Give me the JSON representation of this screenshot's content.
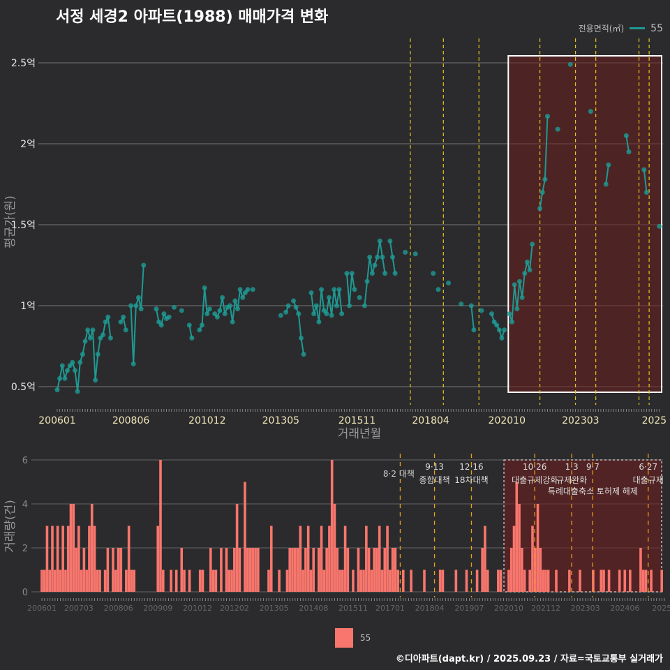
{
  "title": "서정 세경2 아파트(1988) 매매가격 변화",
  "legend": {
    "title": "전용면적(㎡)",
    "item": "55"
  },
  "footer": "©디아파트(dapt.kr) / 2025.09.23 / 자료=국토교통부 실거래가",
  "colors": {
    "line": "#1e9a93",
    "bar": "#f8766d",
    "policy": "#e6c619",
    "highlight": "#6b1e1e"
  },
  "chart_data": [
    {
      "type": "line",
      "title": "서정 세경2 아파트(1988) 매매가격 변화",
      "xlabel": "거래년월",
      "ylabel": "평균가(원)",
      "x_unit": "months since 200601",
      "xticks": [
        {
          "m": 0,
          "label": "200601"
        },
        {
          "m": 29,
          "label": "200806"
        },
        {
          "m": 59,
          "label": "201012"
        },
        {
          "m": 88,
          "label": "201305"
        },
        {
          "m": 118,
          "label": "201511"
        },
        {
          "m": 147,
          "label": "201804"
        },
        {
          "m": 177,
          "label": "202010"
        },
        {
          "m": 206,
          "label": "202303"
        },
        {
          "m": 235,
          "label": "2025"
        }
      ],
      "yticks": [
        {
          "v": 0.5,
          "label": "0.5억"
        },
        {
          "v": 1,
          "label": "1억"
        },
        {
          "v": 1.5,
          "label": "1.5억"
        },
        {
          "v": 2,
          "label": "2억"
        },
        {
          "v": 2.5,
          "label": "2.5억"
        }
      ],
      "ylim": [
        0.38,
        2.6
      ],
      "xlim": [
        -7,
        239
      ],
      "series": [
        {
          "name": "55",
          "points": [
            [
              0,
              0.48
            ],
            [
              1,
              0.55
            ],
            [
              2,
              0.63
            ],
            [
              3,
              0.55
            ],
            [
              4,
              0.6
            ],
            [
              5,
              0.63
            ],
            [
              6,
              0.65
            ],
            [
              7,
              0.6
            ],
            [
              8,
              0.47
            ],
            [
              9,
              0.65
            ],
            [
              10,
              0.7
            ],
            [
              11,
              0.78
            ],
            [
              12,
              0.85
            ],
            [
              13,
              0.8
            ],
            [
              14,
              0.85
            ],
            [
              15,
              0.54
            ],
            [
              16,
              0.7
            ],
            [
              17,
              0.8
            ],
            [
              18,
              0.82
            ],
            [
              19,
              0.9
            ],
            [
              20,
              0.93
            ],
            [
              21,
              0.8
            ],
            [
              25,
              0.9
            ],
            [
              26,
              0.93
            ],
            [
              27,
              0.85
            ],
            [
              29,
              1.0
            ],
            [
              30,
              0.64
            ],
            [
              31,
              1.0
            ],
            [
              32,
              1.05
            ],
            [
              33,
              0.98
            ],
            [
              34,
              1.25
            ],
            [
              39,
              0.98
            ],
            [
              40,
              0.9
            ],
            [
              41,
              0.88
            ],
            [
              42,
              0.95
            ],
            [
              43,
              0.92
            ],
            [
              44,
              0.93
            ],
            [
              46,
              0.99
            ],
            [
              49,
              0.97
            ],
            [
              52,
              0.88
            ],
            [
              53,
              0.8
            ],
            [
              56,
              0.85
            ],
            [
              57,
              0.88
            ],
            [
              58,
              1.11
            ],
            [
              59,
              0.95
            ],
            [
              60,
              0.98
            ],
            [
              62,
              0.95
            ],
            [
              63,
              0.93
            ],
            [
              64,
              0.97
            ],
            [
              65,
              1.05
            ],
            [
              66,
              0.95
            ],
            [
              67,
              0.99
            ],
            [
              68,
              1.0
            ],
            [
              69,
              0.9
            ],
            [
              70,
              1.03
            ],
            [
              71,
              0.98
            ],
            [
              72,
              1.1
            ],
            [
              73,
              1.05
            ],
            [
              74,
              1.08
            ],
            [
              75,
              1.1
            ],
            [
              77,
              1.1
            ],
            [
              88,
              0.94
            ],
            [
              90,
              0.96
            ],
            [
              91,
              1.0
            ],
            [
              93,
              1.03
            ],
            [
              94,
              0.99
            ],
            [
              95,
              0.95
            ],
            [
              96,
              0.8
            ],
            [
              97,
              0.7
            ],
            [
              100,
              1.08
            ],
            [
              101,
              0.95
            ],
            [
              102,
              1.0
            ],
            [
              103,
              0.9
            ],
            [
              104,
              1.1
            ],
            [
              105,
              0.97
            ],
            [
              106,
              0.95
            ],
            [
              107,
              1.05
            ],
            [
              108,
              0.94
            ],
            [
              109,
              1.1
            ],
            [
              110,
              1.0
            ],
            [
              111,
              1.1
            ],
            [
              112,
              0.95
            ],
            [
              114,
              1.2
            ],
            [
              115,
              1.0
            ],
            [
              116,
              1.2
            ],
            [
              117,
              1.1
            ],
            [
              119,
              1.05
            ],
            [
              121,
              1.0
            ],
            [
              122,
              1.15
            ],
            [
              123,
              1.3
            ],
            [
              124,
              1.2
            ],
            [
              125,
              1.25
            ],
            [
              126,
              1.3
            ],
            [
              127,
              1.4
            ],
            [
              128,
              1.3
            ],
            [
              129,
              1.2
            ],
            [
              131,
              1.4
            ],
            [
              132,
              1.3
            ],
            [
              133,
              1.2
            ],
            [
              137,
              1.33
            ],
            [
              141,
              1.32
            ],
            [
              148,
              1.2
            ],
            [
              150,
              1.1
            ],
            [
              154,
              1.14
            ],
            [
              159,
              1.01
            ],
            [
              163,
              1.0
            ],
            [
              164,
              0.85
            ],
            [
              167,
              0.97
            ],
            [
              171,
              0.95
            ],
            [
              172,
              0.9
            ],
            [
              173,
              0.88
            ],
            [
              174,
              0.85
            ],
            [
              175,
              0.8
            ],
            [
              176,
              0.85
            ],
            [
              178,
              0.95
            ],
            [
              179,
              0.9
            ],
            [
              180,
              1.13
            ],
            [
              181,
              0.98
            ],
            [
              182,
              1.15
            ],
            [
              183,
              1.05
            ],
            [
              184,
              1.2
            ],
            [
              185,
              1.27
            ],
            [
              186,
              1.22
            ],
            [
              187,
              1.38
            ],
            [
              190,
              1.6
            ],
            [
              191,
              1.7
            ],
            [
              192,
              1.78
            ],
            [
              193,
              2.17
            ],
            [
              197,
              2.09
            ],
            [
              202,
              2.49
            ],
            [
              210,
              2.2
            ],
            [
              216,
              1.75
            ],
            [
              217,
              1.87
            ],
            [
              224,
              2.05
            ],
            [
              225,
              1.95
            ],
            [
              231,
              1.84
            ],
            [
              232,
              1.7
            ],
            [
              237,
              1.49
            ]
          ]
        }
      ],
      "policy_months": [
        139,
        152,
        166,
        190,
        204,
        212,
        229,
        233
      ],
      "highlight_range": [
        177,
        238
      ]
    },
    {
      "type": "bar",
      "ylabel": "거래량(건)",
      "xticks": [
        {
          "m": 0,
          "label": "200601"
        },
        {
          "m": 14,
          "label": "200703"
        },
        {
          "m": 29,
          "label": "200806"
        },
        {
          "m": 44,
          "label": "200909"
        },
        {
          "m": 59,
          "label": "201012"
        },
        {
          "m": 73,
          "label": "201202"
        },
        {
          "m": 88,
          "label": "201305"
        },
        {
          "m": 103,
          "label": "201408"
        },
        {
          "m": 118,
          "label": "201511"
        },
        {
          "m": 132,
          "label": "201701"
        },
        {
          "m": 147,
          "label": "201804"
        },
        {
          "m": 162,
          "label": "201907"
        },
        {
          "m": 177,
          "label": "202010"
        },
        {
          "m": 191,
          "label": "202112"
        },
        {
          "m": 206,
          "label": "202303"
        },
        {
          "m": 221,
          "label": "202406"
        },
        {
          "m": 235,
          "label": "2025"
        }
      ],
      "yticks": [
        {
          "v": 0,
          "label": "0"
        },
        {
          "v": 2,
          "label": "2"
        },
        {
          "v": 4,
          "label": "4"
        },
        {
          "v": 6,
          "label": "6"
        }
      ],
      "ylim": [
        -0.3,
        6.3
      ],
      "values": [
        1,
        1,
        3,
        1,
        3,
        1,
        3,
        1,
        3,
        1,
        3,
        4,
        4,
        2,
        3,
        1,
        2,
        1,
        3,
        4,
        3,
        1,
        1,
        0,
        1,
        2,
        0,
        2,
        1,
        2,
        2,
        0,
        1,
        3,
        1,
        1,
        0,
        0,
        0,
        0,
        0,
        0,
        0,
        0,
        3,
        6,
        1,
        0,
        0,
        1,
        0,
        1,
        0,
        2,
        1,
        0,
        1,
        0,
        0,
        0,
        1,
        1,
        0,
        0,
        2,
        1,
        1,
        0,
        2,
        0,
        2,
        1,
        1,
        2,
        4,
        2,
        0,
        5,
        2,
        2,
        2,
        2,
        2,
        0,
        0,
        0,
        1,
        3,
        0,
        0,
        1,
        0,
        0,
        1,
        2,
        2,
        2,
        2,
        3,
        1,
        2,
        3,
        1,
        2,
        0,
        2,
        3,
        1,
        2,
        3,
        6,
        4,
        2,
        1,
        1,
        3,
        2,
        0,
        1,
        0,
        2,
        1,
        1,
        3,
        2,
        1,
        2,
        2,
        3,
        1,
        2,
        3,
        1,
        2,
        2,
        1,
        0,
        1,
        0,
        0,
        1,
        0,
        0,
        0,
        0,
        1,
        0,
        0,
        0,
        0,
        0,
        1,
        1,
        0,
        0,
        0,
        0,
        1,
        0,
        0,
        0,
        1,
        0,
        0,
        0,
        1,
        0,
        2,
        3,
        1,
        0,
        0,
        0,
        1,
        1,
        0,
        0,
        1,
        2,
        3,
        5,
        4,
        2,
        1,
        0,
        1,
        3,
        2,
        4,
        2,
        1,
        1,
        1,
        0,
        0,
        1,
        0,
        0,
        0,
        0,
        1,
        0,
        0,
        0,
        1,
        0,
        0,
        0,
        0,
        1,
        0,
        0,
        1,
        1,
        0,
        1,
        0,
        0,
        0,
        1,
        0,
        1,
        0,
        1,
        0,
        0,
        0,
        2,
        1,
        1,
        0,
        1,
        0,
        0,
        0,
        1
      ],
      "annotations": [
        {
          "m": 139,
          "date": "8·2",
          "label": "대책",
          "row": 0
        },
        {
          "m": 152,
          "date": "9·13",
          "label": "종합대책",
          "row": 1
        },
        {
          "m": 166,
          "date": "12·16",
          "label": "18차대책",
          "row": 1
        },
        {
          "m": 190,
          "date": "10·26",
          "label": "대출규제강화",
          "row": 1
        },
        {
          "m": 204,
          "date": "1·3",
          "label": "규제완화",
          "row": 1
        },
        {
          "m": 212,
          "date": "9·7",
          "label": "특례대출축소 토허제 해제",
          "row": 2
        },
        {
          "m": 233,
          "date": "6·27",
          "label": "대출규제",
          "row": 1
        }
      ]
    }
  ]
}
